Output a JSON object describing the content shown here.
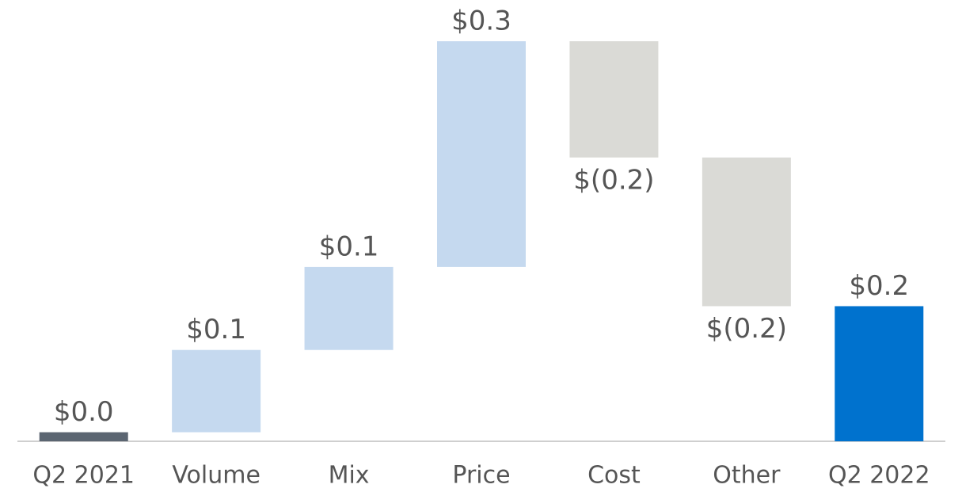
{
  "chart_data": {
    "type": "waterfall",
    "categories": [
      "Q2 2021",
      "Volume",
      "Mix",
      "Price",
      "Cost",
      "Other",
      "Q2 2022"
    ],
    "values": [
      0.012,
      0.109,
      0.11,
      0.299,
      -0.154,
      -0.197,
      0.179
    ],
    "value_labels": [
      "$0.0",
      "$0.1",
      "$0.1",
      "$0.3",
      "$(0.2)",
      "$(0.2)",
      "$0.2"
    ],
    "colors": [
      "#5b6571",
      "#c5d9ef",
      "#c5d9ef",
      "#c5d9ef",
      "#dadad6",
      "#dadad6",
      "#0072ce"
    ],
    "ylim": [
      0,
      0.55
    ]
  }
}
